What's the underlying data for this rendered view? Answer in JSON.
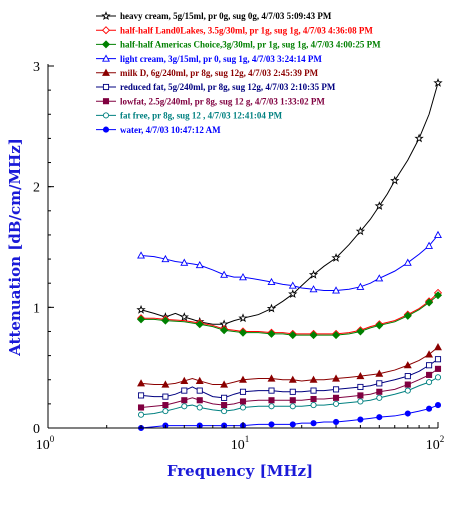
{
  "chart_data": {
    "type": "line",
    "xscale": "log",
    "xlabel": "Frequency [MHz]",
    "ylabel": "Attenuation [dB/cm/MHz]",
    "xlim": [
      1,
      100
    ],
    "ylim": [
      0,
      3
    ],
    "xticks": [
      {
        "value": 1,
        "base": "10",
        "exp": "0"
      },
      {
        "value": 10,
        "base": "10",
        "exp": "1"
      },
      {
        "value": 100,
        "base": "10",
        "exp": "2"
      }
    ],
    "yticks": [
      {
        "value": 0,
        "label": "0"
      },
      {
        "value": 1,
        "label": "1"
      },
      {
        "value": 2,
        "label": "2"
      },
      {
        "value": 3,
        "label": "3"
      }
    ],
    "legend_position": "top-right",
    "series": [
      {
        "name": "heavy cream, 5g/15ml, pr 0g, sug 0g, 4/7/03 5:09:43 PM",
        "color": "#000000",
        "marker": "star",
        "x": [
          3,
          3.5,
          4,
          4.5,
          5,
          5.5,
          6,
          7,
          8,
          9,
          10,
          12,
          14,
          16,
          18,
          20,
          23,
          26,
          30,
          35,
          40,
          45,
          50,
          55,
          60,
          70,
          80,
          90,
          100
        ],
        "y": [
          0.98,
          0.95,
          0.92,
          0.95,
          0.92,
          0.9,
          0.88,
          0.86,
          0.86,
          0.89,
          0.91,
          0.94,
          0.99,
          1.05,
          1.11,
          1.18,
          1.27,
          1.34,
          1.41,
          1.52,
          1.63,
          1.73,
          1.84,
          1.94,
          2.05,
          2.22,
          2.4,
          2.6,
          2.86
        ]
      },
      {
        "name": "half-half Land0Lakes, 3.5g/30ml, pr 1g, sug 1g, 4/7/03 4:36:08 PM",
        "color": "#ff0000",
        "marker": "diamond-open",
        "x": [
          3,
          3.5,
          4,
          5,
          6,
          7,
          8,
          9,
          10,
          12,
          14,
          16,
          18,
          20,
          23,
          26,
          30,
          35,
          40,
          45,
          50,
          60,
          70,
          80,
          90,
          100
        ],
        "y": [
          0.91,
          0.91,
          0.9,
          0.89,
          0.87,
          0.85,
          0.82,
          0.81,
          0.8,
          0.8,
          0.79,
          0.79,
          0.78,
          0.78,
          0.78,
          0.78,
          0.78,
          0.79,
          0.81,
          0.84,
          0.86,
          0.89,
          0.94,
          0.99,
          1.05,
          1.12
        ]
      },
      {
        "name": "half-half Americas Choice,3g/30ml, pr 1g, sug 1g, 4/7/03 4:00:25 PM",
        "color": "#008000",
        "marker": "diamond",
        "x": [
          3,
          3.5,
          4,
          5,
          6,
          7,
          8,
          9,
          10,
          12,
          14,
          16,
          18,
          20,
          23,
          26,
          30,
          35,
          40,
          45,
          50,
          60,
          70,
          80,
          90,
          100
        ],
        "y": [
          0.9,
          0.9,
          0.89,
          0.88,
          0.86,
          0.84,
          0.81,
          0.8,
          0.79,
          0.79,
          0.78,
          0.78,
          0.77,
          0.77,
          0.77,
          0.77,
          0.77,
          0.78,
          0.8,
          0.83,
          0.85,
          0.88,
          0.93,
          0.98,
          1.04,
          1.1
        ]
      },
      {
        "name": "light cream, 3g/15ml, pr 0, sug 1g, 4/7/03 3:24:14 PM",
        "color": "#0000ff",
        "marker": "triangle-open",
        "x": [
          3,
          3.5,
          4,
          4.5,
          5,
          5.5,
          6,
          7,
          8,
          9,
          10,
          12,
          14,
          16,
          18,
          20,
          23,
          26,
          30,
          35,
          40,
          45,
          50,
          60,
          70,
          80,
          90,
          100
        ],
        "y": [
          1.43,
          1.42,
          1.4,
          1.38,
          1.37,
          1.36,
          1.35,
          1.31,
          1.27,
          1.25,
          1.25,
          1.23,
          1.21,
          1.19,
          1.18,
          1.16,
          1.15,
          1.14,
          1.14,
          1.15,
          1.17,
          1.2,
          1.24,
          1.3,
          1.37,
          1.44,
          1.51,
          1.6
        ]
      },
      {
        "name": "milk D, 6g/240ml, pr 8g, sug 12g, 4/7/03 2:45:39 PM",
        "color": "#8b0000",
        "marker": "triangle",
        "x": [
          3,
          3.5,
          4,
          4.5,
          5,
          5.5,
          6,
          7,
          8,
          9,
          10,
          12,
          14,
          16,
          18,
          20,
          23,
          26,
          30,
          35,
          40,
          45,
          50,
          60,
          70,
          80,
          90,
          100
        ],
        "y": [
          0.37,
          0.36,
          0.36,
          0.37,
          0.39,
          0.41,
          0.39,
          0.36,
          0.36,
          0.38,
          0.4,
          0.41,
          0.41,
          0.4,
          0.4,
          0.39,
          0.4,
          0.4,
          0.41,
          0.42,
          0.43,
          0.44,
          0.45,
          0.48,
          0.52,
          0.56,
          0.61,
          0.67
        ]
      },
      {
        "name": "reduced fat, 5g/240ml, pr 8g, sug 12g, 4/7/03 2:10:35 PM",
        "color": "#000080",
        "marker": "square-open",
        "x": [
          3,
          3.5,
          4,
          4.5,
          5,
          5.5,
          6,
          7,
          8,
          9,
          10,
          12,
          14,
          16,
          18,
          20,
          23,
          26,
          30,
          35,
          40,
          45,
          50,
          60,
          70,
          80,
          90,
          100
        ],
        "y": [
          0.27,
          0.26,
          0.26,
          0.28,
          0.31,
          0.34,
          0.31,
          0.26,
          0.25,
          0.28,
          0.3,
          0.31,
          0.31,
          0.3,
          0.3,
          0.3,
          0.31,
          0.31,
          0.32,
          0.33,
          0.34,
          0.35,
          0.37,
          0.4,
          0.43,
          0.47,
          0.52,
          0.57
        ]
      },
      {
        "name": "lowfat, 2.5g/240ml, pr 8g, sug 12 g, 4/7/03 1:33:02 PM",
        "color": "#800040",
        "marker": "square",
        "x": [
          3,
          3.5,
          4,
          4.5,
          5,
          5.5,
          6,
          7,
          8,
          9,
          10,
          12,
          14,
          16,
          18,
          20,
          23,
          26,
          30,
          35,
          40,
          45,
          50,
          60,
          70,
          80,
          90,
          100
        ],
        "y": [
          0.17,
          0.18,
          0.19,
          0.21,
          0.23,
          0.25,
          0.23,
          0.2,
          0.19,
          0.2,
          0.22,
          0.23,
          0.23,
          0.23,
          0.23,
          0.23,
          0.24,
          0.24,
          0.25,
          0.26,
          0.27,
          0.28,
          0.3,
          0.32,
          0.36,
          0.4,
          0.44,
          0.49
        ]
      },
      {
        "name": "fat free, pr 8g, sug 12 , 4/7/03 12:41:04 PM",
        "color": "#008080",
        "marker": "circle-open",
        "x": [
          3,
          3.5,
          4,
          4.5,
          5,
          5.5,
          6,
          7,
          8,
          9,
          10,
          12,
          14,
          16,
          18,
          20,
          23,
          26,
          30,
          35,
          40,
          45,
          50,
          60,
          70,
          80,
          90,
          100
        ],
        "y": [
          0.11,
          0.12,
          0.14,
          0.16,
          0.18,
          0.19,
          0.17,
          0.15,
          0.14,
          0.15,
          0.17,
          0.18,
          0.18,
          0.18,
          0.18,
          0.18,
          0.19,
          0.19,
          0.2,
          0.21,
          0.22,
          0.23,
          0.25,
          0.28,
          0.31,
          0.35,
          0.38,
          0.42
        ]
      },
      {
        "name": "water, 4/7/03 10:47:12 AM",
        "color": "#0000ff",
        "marker": "circle",
        "x": [
          3,
          3.5,
          4,
          5,
          6,
          7,
          8,
          9,
          10,
          12,
          14,
          16,
          18,
          20,
          23,
          26,
          30,
          35,
          40,
          45,
          50,
          60,
          70,
          80,
          90,
          100
        ],
        "y": [
          0.0,
          0.01,
          0.02,
          0.02,
          0.02,
          0.02,
          0.02,
          0.02,
          0.02,
          0.03,
          0.03,
          0.03,
          0.03,
          0.04,
          0.04,
          0.05,
          0.05,
          0.06,
          0.07,
          0.08,
          0.09,
          0.1,
          0.12,
          0.14,
          0.16,
          0.19
        ]
      }
    ]
  }
}
